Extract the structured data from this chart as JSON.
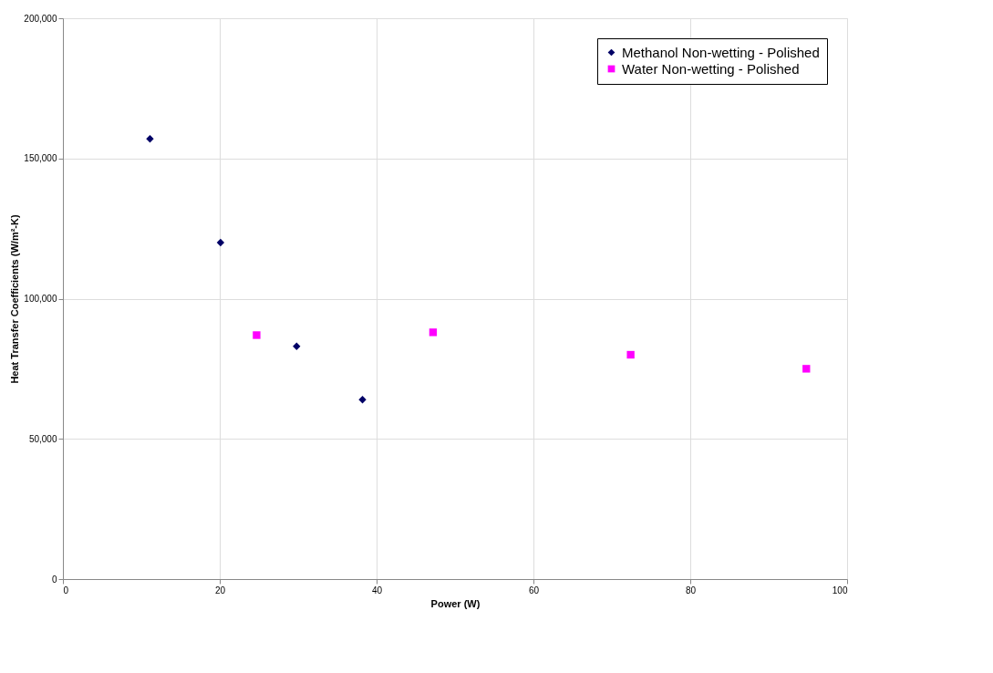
{
  "chart_data": {
    "type": "scatter",
    "xlabel": "Power (W)",
    "ylabel": "Heat Transfer Coefficients (W/m²-K)",
    "xlim": [
      0,
      100
    ],
    "xticks": [
      0,
      20,
      40,
      60,
      80,
      100
    ],
    "ylim": [
      0,
      200000
    ],
    "yticks": [
      {
        "value": 0,
        "label": "0"
      },
      {
        "value": 50000,
        "label": "50,000"
      },
      {
        "value": 100000,
        "label": "100,000"
      },
      {
        "value": 150000,
        "label": "150,000"
      },
      {
        "value": 200000,
        "label": "200,000"
      }
    ],
    "grid": true,
    "legend": "top right",
    "series": [
      {
        "name": "Methanol Non-wetting - Polished",
        "color": "#000066",
        "marker": "diamond",
        "x": [
          11.1,
          20.1,
          29.8,
          38.2
        ],
        "values": [
          157000,
          120000,
          83000,
          64000
        ]
      },
      {
        "name": "Water Non-wetting - Polished",
        "color": "#ff00ff",
        "marker": "square",
        "x": [
          24.7,
          47.2,
          72.4,
          94.8
        ],
        "values": [
          87000,
          88000,
          80000,
          75000
        ]
      }
    ]
  }
}
